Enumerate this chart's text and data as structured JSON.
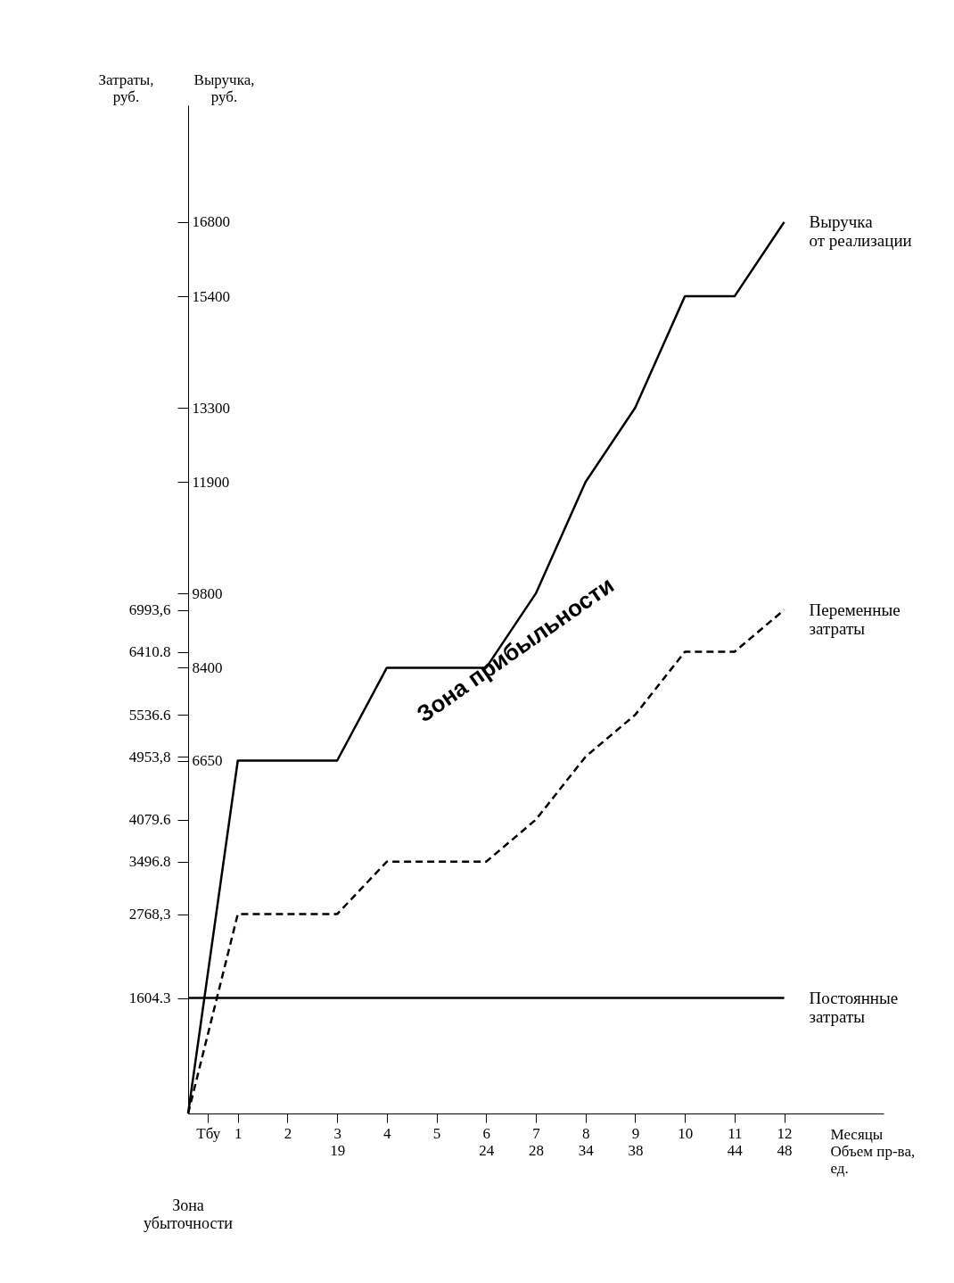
{
  "chart_data": {
    "type": "line",
    "xlabel": "Месяцы\nОбъем пр-ва,\nед.",
    "ylabel": "Выручка,\nруб.",
    "y2label": "Затраты,\nруб.",
    "annotations": [
      "Зона прибыльности",
      "Зона\nубыточности"
    ],
    "xlim": [
      0,
      14
    ],
    "xticks": [
      {
        "value": 0.4,
        "label": "Тбу"
      },
      1,
      2,
      {
        "value": 3,
        "label": "3\n19"
      },
      4,
      5,
      {
        "value": 6,
        "label": "6\n24"
      },
      {
        "value": 7,
        "label": "7\n28"
      },
      {
        "value": 8,
        "label": "8\n34"
      },
      {
        "value": 9,
        "label": "9\n38"
      },
      10,
      {
        "value": 11,
        "label": "11\n44"
      },
      {
        "value": 12,
        "label": "12\n48"
      }
    ],
    "ylim": [
      0,
      19000
    ],
    "yticks": [
      6650,
      8400,
      9800,
      11900,
      13300,
      15400,
      16800
    ],
    "y2lim": [
      0,
      14000
    ],
    "y2ticks": [
      1604.3,
      {
        "value": 2768.3,
        "label": "2768,3"
      },
      3496.8,
      4079.6,
      {
        "value": 4953.8,
        "label": "4953,8"
      },
      5536.6,
      6410.8,
      {
        "value": 6993.6,
        "label": "6993,6"
      }
    ],
    "grid": false,
    "legend": false,
    "marker": "none",
    "series": [
      {
        "name": "Выручка\nот реализации",
        "color": "#000000",
        "line_style": "solid",
        "x": [
          0,
          1,
          3,
          4,
          6,
          7,
          8,
          9,
          10,
          11,
          12
        ],
        "values": [
          0,
          6650,
          6650,
          8400,
          8400,
          9800,
          11900,
          13300,
          15400,
          15400,
          16800
        ]
      },
      {
        "name": "Переменные\nзатраты",
        "color": "#000000",
        "line_style": "dashed",
        "axis": "y2",
        "x": [
          0,
          1,
          3,
          4,
          6,
          7,
          8,
          9,
          10,
          11,
          12
        ],
        "values": [
          0,
          2768.3,
          2768.3,
          3496.8,
          3496.8,
          4079.6,
          4953.8,
          5536.6,
          6410.8,
          6410.8,
          6993.6
        ]
      },
      {
        "name": "Постоянные\nзатраты",
        "color": "#000000",
        "line_style": "solid",
        "axis": "y2",
        "x": [
          0,
          12
        ],
        "values": [
          1604.3,
          1604.3
        ]
      }
    ]
  }
}
